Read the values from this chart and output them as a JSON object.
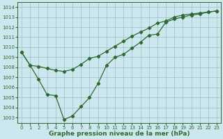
{
  "line1_x": [
    0,
    1,
    2,
    3,
    4,
    5,
    6,
    7,
    8,
    9,
    10,
    11,
    12,
    13,
    14,
    15,
    16,
    17,
    18,
    19,
    20,
    21,
    22,
    23
  ],
  "line1_y": [
    1009.5,
    1008.2,
    1008.1,
    1007.9,
    1007.7,
    1007.6,
    1007.8,
    1008.3,
    1008.9,
    1009.1,
    1009.6,
    1010.1,
    1010.6,
    1011.1,
    1011.5,
    1011.9,
    1012.4,
    1012.6,
    1013.0,
    1013.2,
    1013.3,
    1013.4,
    1013.5,
    1013.6
  ],
  "line2_x": [
    0,
    1,
    2,
    3,
    4,
    5,
    6,
    7,
    8,
    9,
    10,
    11,
    12,
    13,
    14,
    15,
    16,
    17,
    18,
    19,
    20,
    21,
    22,
    23
  ],
  "line2_y": [
    1009.5,
    1008.2,
    1006.8,
    1005.3,
    1005.2,
    1002.8,
    1003.2,
    1004.1,
    1005.0,
    1006.4,
    1008.2,
    1009.0,
    1009.3,
    1009.9,
    1010.5,
    1011.2,
    1011.3,
    1012.5,
    1012.8,
    1013.0,
    1013.2,
    1013.3,
    1013.5,
    1013.6
  ],
  "color": "#2d6a2d",
  "bg_color": "#cce8ee",
  "grid_color": "#9bbfc8",
  "xlabel": "Graphe pression niveau de la mer (hPa)",
  "ylim": [
    1002.5,
    1014.5
  ],
  "xlim": [
    -0.5,
    23.5
  ],
  "yticks": [
    1003,
    1004,
    1005,
    1006,
    1007,
    1008,
    1009,
    1010,
    1011,
    1012,
    1013,
    1014
  ],
  "xticks": [
    0,
    1,
    2,
    3,
    4,
    5,
    6,
    7,
    8,
    9,
    10,
    11,
    12,
    13,
    14,
    15,
    16,
    17,
    18,
    19,
    20,
    21,
    22,
    23
  ],
  "marker": "D",
  "marker_size": 2.2,
  "linewidth": 0.9,
  "tick_fontsize": 5.0,
  "xlabel_fontsize": 6.5
}
